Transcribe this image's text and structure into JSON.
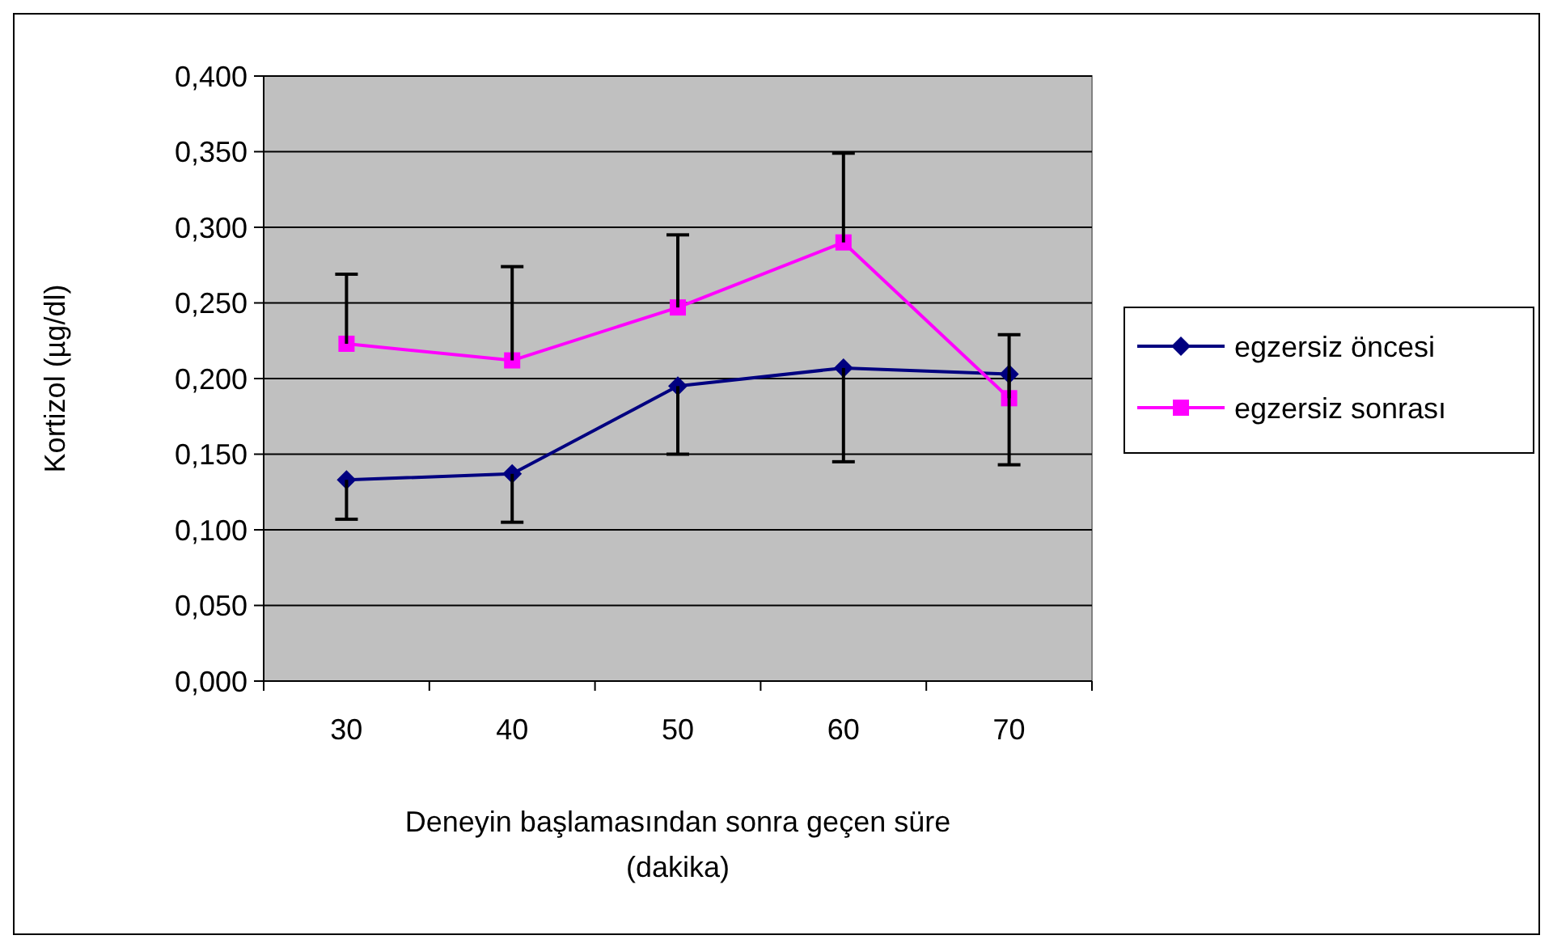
{
  "chart_data": {
    "type": "line",
    "xlabel": "Deneyin başlamasından sonra geçen süre\n(dakika)",
    "ylabel": "Kortizol (µg/dl)",
    "categories": [
      "30",
      "40",
      "50",
      "60",
      "70"
    ],
    "series": [
      {
        "name": "egzersiz öncesi",
        "color": "#000080",
        "marker": "diamond",
        "values": [
          0.133,
          0.137,
          0.195,
          0.207,
          0.203
        ],
        "errors": [
          [
            0.107,
            0.133
          ],
          [
            0.105,
            0.137
          ],
          [
            0.15,
            0.195
          ],
          [
            0.145,
            0.207
          ],
          [
            0.143,
            0.203
          ]
        ]
      },
      {
        "name": "egzersiz sonrası",
        "color": "#ff00ff",
        "marker": "square",
        "values": [
          0.223,
          0.212,
          0.247,
          0.29,
          0.187
        ],
        "errors": [
          [
            0.223,
            0.269
          ],
          [
            0.212,
            0.274
          ],
          [
            0.247,
            0.295
          ],
          [
            0.29,
            0.349
          ],
          [
            0.187,
            0.229
          ]
        ]
      }
    ],
    "ylim": [
      0,
      0.4
    ],
    "yticks": [
      {
        "value": 0,
        "label": "0,000"
      },
      {
        "value": 0.05,
        "label": "0,050"
      },
      {
        "value": 0.1,
        "label": "0,100"
      },
      {
        "value": 0.15,
        "label": "0,150"
      },
      {
        "value": 0.2,
        "label": "0,200"
      },
      {
        "value": 0.25,
        "label": "0,250"
      },
      {
        "value": 0.3,
        "label": "0,300"
      },
      {
        "value": 0.35,
        "label": "0,350"
      },
      {
        "value": 0.4,
        "label": "0,400"
      }
    ],
    "grid": "y",
    "legend": "right",
    "line_style": "solid"
  }
}
